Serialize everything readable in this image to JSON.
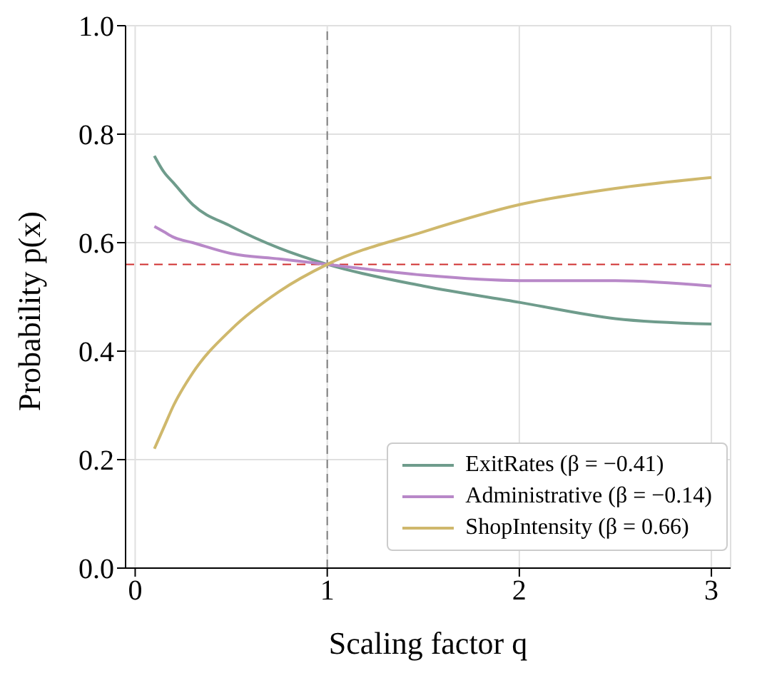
{
  "chart_data": {
    "type": "line",
    "xlabel": "Scaling factor q",
    "ylabel": "Probability p(x)",
    "xlim": [
      -0.05,
      3.1
    ],
    "xticks": [
      0,
      1,
      2,
      3
    ],
    "ylim": [
      0,
      1
    ],
    "yticks": [
      {
        "value": 0,
        "label": "0.0"
      },
      0.2,
      0.4,
      0.6,
      0.8,
      {
        "value": 1,
        "label": "1.0"
      }
    ],
    "grid": true,
    "legend": "bottom right",
    "marker": "none",
    "line_style": "solid",
    "x": [
      0.1,
      0.15,
      0.2,
      0.3,
      0.5,
      0.75,
      1,
      1.5,
      2,
      2.5,
      3
    ],
    "series": [
      {
        "name": "ExitRates (β = −0.41)",
        "color": "#6f9c8c",
        "values": [
          0.76,
          0.73,
          0.71,
          0.67,
          0.63,
          0.59,
          0.56,
          0.52,
          0.49,
          0.46,
          0.45
        ]
      },
      {
        "name": "Administrative (β = −0.14)",
        "color": "#b888c8",
        "values": [
          0.63,
          0.62,
          0.61,
          0.6,
          0.58,
          0.57,
          0.56,
          0.54,
          0.53,
          0.53,
          0.52
        ]
      },
      {
        "name": "ShopIntensity (β = 0.66)",
        "color": "#cfb86c",
        "values": [
          0.22,
          0.26,
          0.3,
          0.36,
          0.44,
          0.51,
          0.56,
          0.62,
          0.67,
          0.7,
          0.72
        ]
      }
    ],
    "ref_lines": [
      {
        "axis": "x",
        "value": 1,
        "color": "#808080",
        "line_style": "dashed"
      },
      {
        "axis": "y",
        "value": 0.56,
        "color": "#d03030",
        "line_style": "dashed"
      }
    ]
  }
}
